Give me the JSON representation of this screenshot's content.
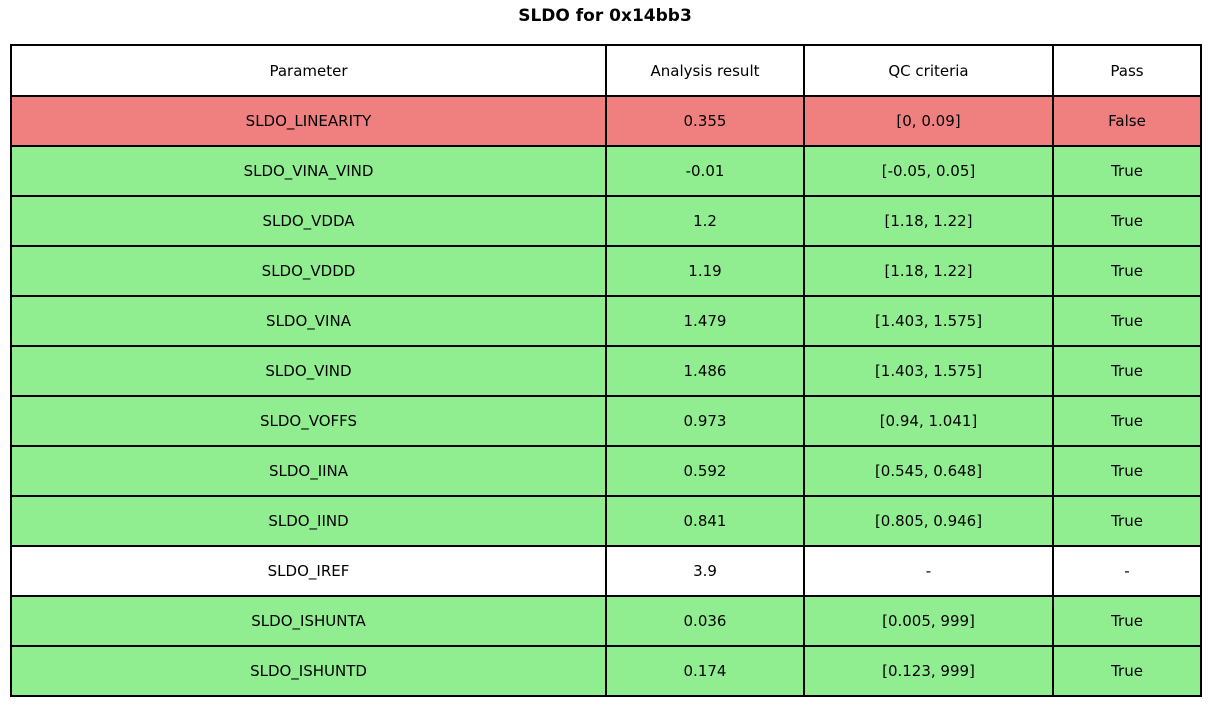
{
  "title": "SLDO for 0x14bb3",
  "colors": {
    "pass": "#90ee90",
    "fail": "#f08080",
    "neutral": "#ffffff",
    "border": "#000000",
    "text": "#000000"
  },
  "chart_data": {
    "type": "table",
    "title": "SLDO for 0x14bb3",
    "columns": [
      "Parameter",
      "Analysis result",
      "QC criteria",
      "Pass"
    ],
    "rows": [
      {
        "parameter": "SLDO_LINEARITY",
        "result": "0.355",
        "criteria": "[0, 0.09]",
        "pass": "False",
        "status": "fail"
      },
      {
        "parameter": "SLDO_VINA_VIND",
        "result": "-0.01",
        "criteria": "[-0.05, 0.05]",
        "pass": "True",
        "status": "pass"
      },
      {
        "parameter": "SLDO_VDDA",
        "result": "1.2",
        "criteria": "[1.18, 1.22]",
        "pass": "True",
        "status": "pass"
      },
      {
        "parameter": "SLDO_VDDD",
        "result": "1.19",
        "criteria": "[1.18, 1.22]",
        "pass": "True",
        "status": "pass"
      },
      {
        "parameter": "SLDO_VINA",
        "result": "1.479",
        "criteria": "[1.403, 1.575]",
        "pass": "True",
        "status": "pass"
      },
      {
        "parameter": "SLDO_VIND",
        "result": "1.486",
        "criteria": "[1.403, 1.575]",
        "pass": "True",
        "status": "pass"
      },
      {
        "parameter": "SLDO_VOFFS",
        "result": "0.973",
        "criteria": "[0.94, 1.041]",
        "pass": "True",
        "status": "pass"
      },
      {
        "parameter": "SLDO_IINA",
        "result": "0.592",
        "criteria": "[0.545, 0.648]",
        "pass": "True",
        "status": "pass"
      },
      {
        "parameter": "SLDO_IIND",
        "result": "0.841",
        "criteria": "[0.805, 0.946]",
        "pass": "True",
        "status": "pass"
      },
      {
        "parameter": "SLDO_IREF",
        "result": "3.9",
        "criteria": "-",
        "pass": "-",
        "status": "neutral"
      },
      {
        "parameter": "SLDO_ISHUNTA",
        "result": "0.036",
        "criteria": "[0.005, 999]",
        "pass": "True",
        "status": "pass"
      },
      {
        "parameter": "SLDO_ISHUNTD",
        "result": "0.174",
        "criteria": "[0.123, 999]",
        "pass": "True",
        "status": "pass"
      }
    ]
  }
}
